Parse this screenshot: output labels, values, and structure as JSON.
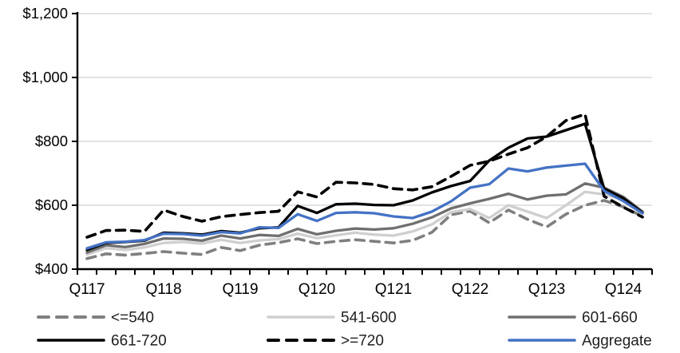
{
  "chart_data": {
    "type": "line",
    "title": "",
    "categories": [
      "Q117",
      "Q217",
      "Q317",
      "Q417",
      "Q118",
      "Q218",
      "Q318",
      "Q418",
      "Q119",
      "Q219",
      "Q319",
      "Q419",
      "Q120",
      "Q220",
      "Q320",
      "Q420",
      "Q121",
      "Q221",
      "Q321",
      "Q421",
      "Q122",
      "Q222",
      "Q322",
      "Q422",
      "Q123",
      "Q223",
      "Q323",
      "Q423",
      "Q124",
      "Q224"
    ],
    "x_axis": {
      "visible_tick_labels": [
        "Q117",
        "Q118",
        "Q119",
        "Q120",
        "Q121",
        "Q122",
        "Q123",
        "Q124"
      ],
      "label_every_n_categories": 4,
      "minor_tick_every_category": true
    },
    "y_axis": {
      "min": 400,
      "max": 1200,
      "step": 200,
      "tick_labels": [
        "$400",
        "$600",
        "$800",
        "$1,000",
        "$1,200"
      ],
      "unit_prefix": "$"
    },
    "grid": true,
    "legend_position": "bottom",
    "series": [
      {
        "id": "le540",
        "name": "<=540",
        "color": "#808080",
        "style": "dashed",
        "values": [
          433,
          448,
          444,
          449,
          455,
          450,
          446,
          468,
          458,
          475,
          483,
          495,
          480,
          487,
          492,
          487,
          482,
          490,
          515,
          570,
          582,
          545,
          585,
          556,
          532,
          572,
          600,
          615,
          595,
          565
        ]
      },
      {
        "id": "541-600",
        "name": "541-600",
        "color": "#cfcfcf",
        "style": "solid",
        "values": [
          446,
          466,
          460,
          468,
          482,
          485,
          480,
          492,
          482,
          490,
          494,
          511,
          497,
          506,
          514,
          508,
          505,
          518,
          540,
          578,
          588,
          560,
          600,
          580,
          560,
          600,
          642,
          634,
          618,
          572
        ]
      },
      {
        "id": "601-660",
        "name": "601-660",
        "color": "#6f6f6f",
        "style": "solid",
        "values": [
          452,
          475,
          469,
          479,
          496,
          495,
          489,
          505,
          496,
          507,
          504,
          526,
          509,
          520,
          527,
          524,
          528,
          542,
          562,
          590,
          606,
          620,
          636,
          618,
          630,
          634,
          668,
          655,
          626,
          580
        ]
      },
      {
        "id": "661-720",
        "name": "661-720",
        "color": "#000000",
        "style": "solid",
        "values": [
          460,
          482,
          485,
          489,
          514,
          512,
          508,
          519,
          514,
          528,
          531,
          598,
          576,
          603,
          605,
          601,
          600,
          615,
          640,
          660,
          676,
          740,
          780,
          809,
          815,
          835,
          855,
          652,
          622,
          577
        ]
      },
      {
        "id": "ge720",
        "name": ">=720",
        "color": "#000000",
        "style": "dashed",
        "values": [
          500,
          521,
          522,
          518,
          585,
          565,
          550,
          564,
          571,
          577,
          581,
          642,
          626,
          672,
          670,
          665,
          652,
          648,
          658,
          690,
          725,
          738,
          760,
          780,
          815,
          865,
          885,
          628,
          594,
          563
        ]
      },
      {
        "id": "aggregate",
        "name": "Aggregate",
        "color": "#4472c4",
        "style": "solid",
        "values": [
          465,
          484,
          486,
          491,
          511,
          510,
          505,
          516,
          512,
          531,
          529,
          572,
          551,
          576,
          578,
          575,
          565,
          560,
          580,
          612,
          655,
          666,
          715,
          706,
          718,
          724,
          730,
          645,
          613,
          575
        ]
      }
    ],
    "colors": {
      "gridline": "#d9d9d9",
      "axis": "#000000",
      "tick_label_text": "#000000",
      "legend_text": "#202020",
      "background": "#ffffff"
    }
  }
}
